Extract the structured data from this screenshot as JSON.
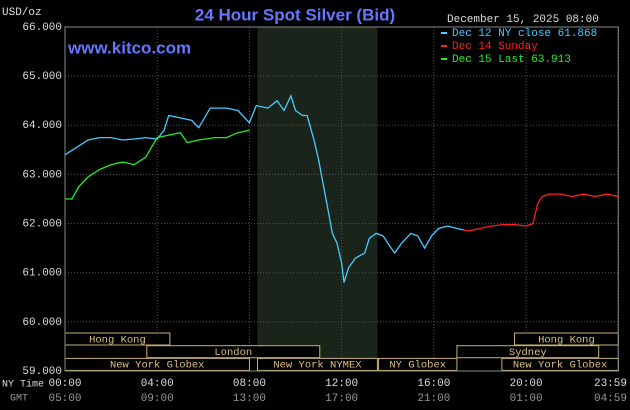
{
  "chart_data": {
    "type": "line",
    "title": "24 Hour Spot Silver (Bid)",
    "watermark": "www.kitco.com",
    "y_label": "USD/oz",
    "timestamp": "December 15, 2025 08:00",
    "x_row_labels": [
      "NY Time",
      "GMT"
    ],
    "xlim": [
      0,
      24
    ],
    "ylim": [
      59,
      66
    ],
    "xticks": [
      {
        "value": 0,
        "label": "00:00"
      },
      {
        "value": 4,
        "label": "04:00"
      },
      {
        "value": 8,
        "label": "08:00"
      },
      {
        "value": 12,
        "label": "12:00"
      },
      {
        "value": 16,
        "label": "16:00"
      },
      {
        "value": 20,
        "label": "20:00"
      },
      {
        "value": 23.98,
        "label": "23:59"
      }
    ],
    "gmt_labels": [
      "05:00",
      "09:00",
      "13:00",
      "17:00",
      "21:00",
      "01:00",
      "04:59"
    ],
    "yticks": [
      {
        "value": 59,
        "label": "59.000"
      },
      {
        "value": 60,
        "label": "60.000"
      },
      {
        "value": 61,
        "label": "61.000"
      },
      {
        "value": 62,
        "label": "62.000"
      },
      {
        "value": 63,
        "label": "63.000"
      },
      {
        "value": 64,
        "label": "64.000"
      },
      {
        "value": 65,
        "label": "65.000"
      },
      {
        "value": 66,
        "label": "66.000"
      }
    ],
    "grid": true,
    "highlight": [
      8.35,
      13.55
    ],
    "sessions": [
      {
        "name": "Hong Kong",
        "start": 0,
        "end": 4.55
      },
      {
        "name": "London",
        "start": 3.55,
        "end": 11.05
      },
      {
        "name": "New York Globex",
        "start": 0,
        "end": 8.0
      },
      {
        "name": "New York NYMEX",
        "start": 8.35,
        "end": 13.55
      },
      {
        "name": "NY Globex",
        "start": 13.6,
        "end": 17.0
      },
      {
        "name": "Sydney",
        "start": 17.0,
        "end": 23.15
      },
      {
        "name": "Hong Kong",
        "start": 19.5,
        "end": 24
      },
      {
        "name": "New York Globex",
        "start": 18.95,
        "end": 24
      }
    ],
    "series": [
      {
        "name": "Dec 12 NY close 61.868",
        "color": "#44ccff",
        "x": [
          0,
          0.5,
          1,
          1.5,
          2,
          2.5,
          3,
          3.5,
          4,
          4.3,
          4.5,
          5,
          5.5,
          5.8,
          6.3,
          7,
          7.5,
          8,
          8.3,
          8.8,
          9.2,
          9.5,
          9.8,
          10,
          10.3,
          10.5,
          10.8,
          11,
          11.2,
          11.4,
          11.6,
          11.8,
          12,
          12.1,
          12.3,
          12.6,
          13,
          13.2,
          13.5,
          13.8,
          14,
          14.3,
          14.6,
          15,
          15.3,
          15.6,
          15.9,
          16.2,
          16.6,
          17,
          17.3
        ],
        "values": [
          63.4,
          63.55,
          63.7,
          63.75,
          63.75,
          63.7,
          63.72,
          63.75,
          63.72,
          63.9,
          64.2,
          64.15,
          64.1,
          63.95,
          64.35,
          64.35,
          64.3,
          64.05,
          64.4,
          64.35,
          64.5,
          64.3,
          64.6,
          64.3,
          64.2,
          64.2,
          63.7,
          63.3,
          62.8,
          62.3,
          61.8,
          61.6,
          61.2,
          60.8,
          61.1,
          61.3,
          61.4,
          61.7,
          61.8,
          61.75,
          61.6,
          61.4,
          61.6,
          61.8,
          61.75,
          61.5,
          61.75,
          61.9,
          61.95,
          61.9,
          61.87
        ]
      },
      {
        "name": "Dec 14 Sunday",
        "color": "#ff2020",
        "x": [
          17.3,
          17.5,
          18,
          18.5,
          19,
          19.5,
          20,
          20.3,
          20.5,
          20.7,
          21,
          21.5,
          22,
          22.5,
          23,
          23.5,
          24
        ],
        "values": [
          61.87,
          61.85,
          61.9,
          61.95,
          61.98,
          61.98,
          61.95,
          62.0,
          62.4,
          62.55,
          62.6,
          62.6,
          62.55,
          62.6,
          62.55,
          62.6,
          62.55
        ]
      },
      {
        "name": "Dec 15 Last 63.913",
        "color": "#22ee22",
        "x": [
          0,
          0.3,
          0.6,
          1,
          1.5,
          2,
          2.5,
          3,
          3.5,
          4,
          4.5,
          5,
          5.3,
          5.8,
          6.5,
          7,
          7.5,
          8
        ],
        "values": [
          62.5,
          62.5,
          62.75,
          62.95,
          63.1,
          63.2,
          63.25,
          63.2,
          63.35,
          63.75,
          63.8,
          63.85,
          63.65,
          63.7,
          63.75,
          63.75,
          63.85,
          63.9
        ]
      }
    ]
  }
}
